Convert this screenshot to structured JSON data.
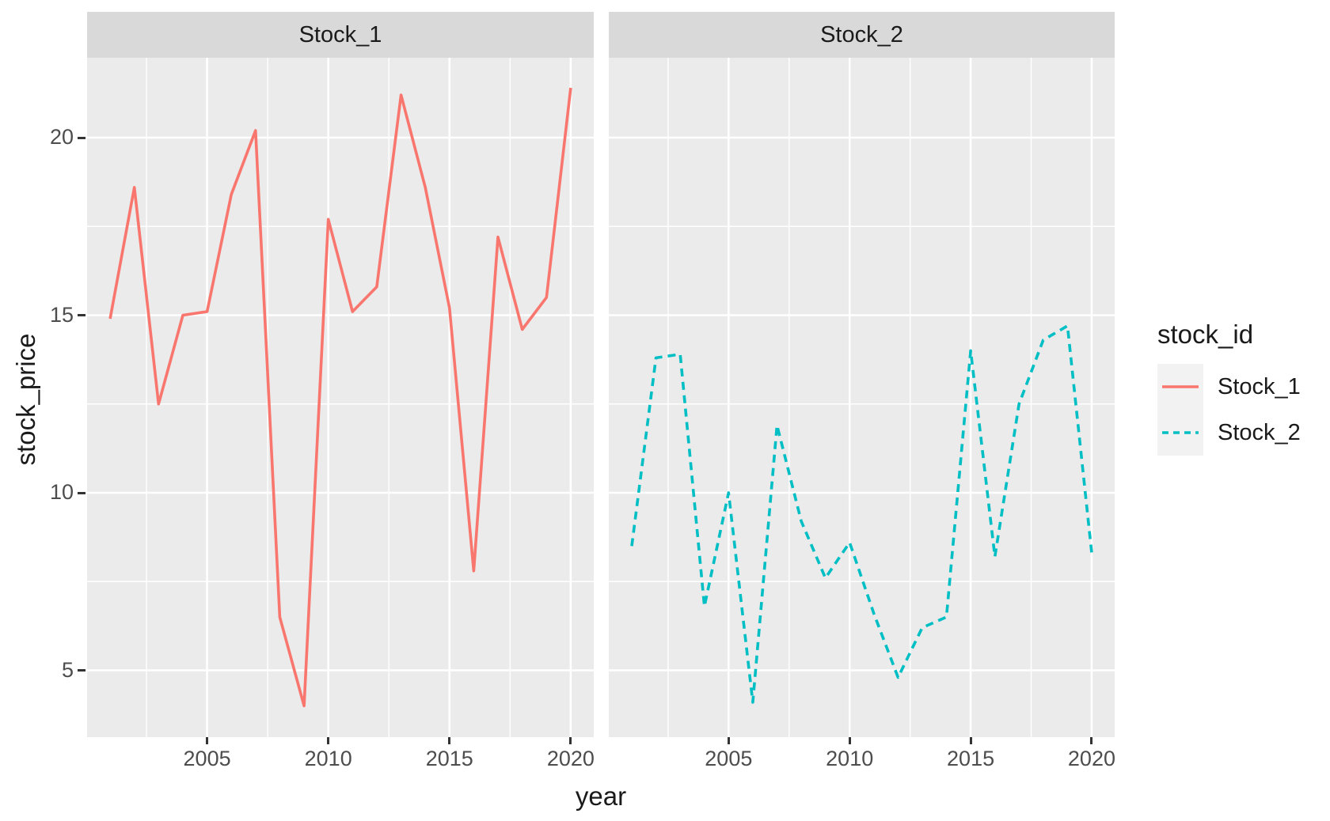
{
  "chart_data": {
    "type": "line",
    "facets": [
      {
        "label": "Stock_1",
        "series": "Stock_1"
      },
      {
        "label": "Stock_2",
        "series": "Stock_2"
      }
    ],
    "x": [
      2001,
      2002,
      2003,
      2004,
      2005,
      2006,
      2007,
      2008,
      2009,
      2010,
      2011,
      2012,
      2013,
      2014,
      2015,
      2016,
      2017,
      2018,
      2019,
      2020
    ],
    "series": [
      {
        "name": "Stock_1",
        "color": "#F8766D",
        "linetype": "solid",
        "values": [
          14.9,
          18.6,
          12.5,
          15.0,
          15.1,
          18.4,
          20.2,
          6.5,
          4.0,
          17.7,
          15.1,
          15.8,
          21.2,
          18.6,
          15.2,
          7.8,
          17.2,
          14.6,
          15.5,
          21.4
        ]
      },
      {
        "name": "Stock_2",
        "color": "#00BFC4",
        "linetype": "dashed",
        "values": [
          8.5,
          13.8,
          13.9,
          6.8,
          10.0,
          4.1,
          11.9,
          9.2,
          7.6,
          8.6,
          6.6,
          4.8,
          6.2,
          6.5,
          14.0,
          8.2,
          12.5,
          14.3,
          14.7,
          8.3
        ]
      }
    ],
    "xlabel": "year",
    "ylabel": "stock_price",
    "legend_title": "stock_id",
    "legend_position": "right",
    "x_major_ticks": [
      2005,
      2010,
      2015,
      2020
    ],
    "x_minor_ticks": [
      2002.5,
      2007.5,
      2012.5,
      2017.5
    ],
    "y_major_ticks": [
      5,
      10,
      15,
      20
    ],
    "y_minor_ticks": [
      7.5,
      12.5,
      17.5
    ],
    "xlim": [
      2000.05,
      2020.95
    ],
    "ylim": [
      3.1,
      22.4
    ],
    "grid": true,
    "panel_background": "#EBEBEB",
    "strip_background": "#D9D9D9",
    "gridline_color": "#FFFFFF"
  },
  "legend": {
    "title": "stock_id",
    "items": [
      {
        "label": "Stock_1",
        "color": "#F8766D",
        "linetype": "solid"
      },
      {
        "label": "Stock_2",
        "color": "#00BFC4",
        "linetype": "dashed"
      }
    ]
  },
  "axes": {
    "x_tick_labels": [
      "2005",
      "2010",
      "2015",
      "2020"
    ],
    "y_tick_labels": [
      "20",
      "15",
      "10",
      "5"
    ],
    "x_title": "year",
    "y_title": "stock_price"
  },
  "strips": {
    "strip1": "Stock_1",
    "strip2": "Stock_2"
  }
}
